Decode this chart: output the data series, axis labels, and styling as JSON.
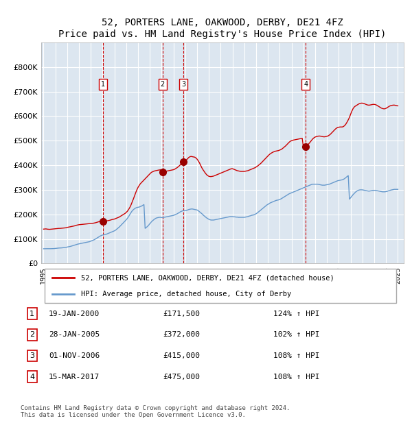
{
  "title": "52, PORTERS LANE, OAKWOOD, DERBY, DE21 4FZ",
  "subtitle": "Price paid vs. HM Land Registry's House Price Index (HPI)",
  "red_label": "52, PORTERS LANE, OAKWOOD, DERBY, DE21 4FZ (detached house)",
  "blue_label": "HPI: Average price, detached house, City of Derby",
  "footer": "Contains HM Land Registry data © Crown copyright and database right 2024.\nThis data is licensed under the Open Government Licence v3.0.",
  "sales": [
    {
      "num": 1,
      "date": "19-JAN-2000",
      "price": 171500,
      "year": 2000.05,
      "pct": "124%",
      "arrow": "↑"
    },
    {
      "num": 2,
      "date": "28-JAN-2005",
      "price": 372000,
      "year": 2005.07,
      "pct": "102%",
      "arrow": "↑"
    },
    {
      "num": 3,
      "date": "01-NOV-2006",
      "price": 415000,
      "year": 2006.83,
      "pct": "108%",
      "arrow": "↑"
    },
    {
      "num": 4,
      "date": "15-MAR-2017",
      "price": 475000,
      "year": 2017.21,
      "pct": "108%",
      "arrow": "↑"
    }
  ],
  "hpi_red": {
    "years": [
      1995.0,
      1995.1,
      1995.2,
      1995.3,
      1995.4,
      1995.5,
      1995.6,
      1995.7,
      1995.8,
      1995.9,
      1996.0,
      1996.1,
      1996.2,
      1996.3,
      1996.4,
      1996.5,
      1996.6,
      1996.7,
      1996.8,
      1996.9,
      1997.0,
      1997.1,
      1997.2,
      1997.3,
      1997.4,
      1997.5,
      1997.6,
      1997.7,
      1997.8,
      1997.9,
      1998.0,
      1998.1,
      1998.2,
      1998.3,
      1998.4,
      1998.5,
      1998.6,
      1998.7,
      1998.8,
      1998.9,
      1999.0,
      1999.1,
      1999.2,
      1999.3,
      1999.4,
      1999.5,
      1999.6,
      1999.7,
      1999.8,
      1999.9,
      2000.0,
      2000.1,
      2000.2,
      2000.3,
      2000.4,
      2000.5,
      2000.6,
      2000.7,
      2000.8,
      2000.9,
      2001.0,
      2001.1,
      2001.2,
      2001.3,
      2001.4,
      2001.5,
      2001.6,
      2001.7,
      2001.8,
      2001.9,
      2002.0,
      2002.1,
      2002.2,
      2002.3,
      2002.4,
      2002.5,
      2002.6,
      2002.7,
      2002.8,
      2002.9,
      2003.0,
      2003.1,
      2003.2,
      2003.3,
      2003.4,
      2003.5,
      2003.6,
      2003.7,
      2003.8,
      2003.9,
      2004.0,
      2004.1,
      2004.2,
      2004.3,
      2004.4,
      2004.5,
      2004.6,
      2004.7,
      2004.8,
      2004.9,
      2005.0,
      2005.1,
      2005.2,
      2005.3,
      2005.4,
      2005.5,
      2005.6,
      2005.7,
      2005.8,
      2005.9,
      2006.0,
      2006.1,
      2006.2,
      2006.3,
      2006.4,
      2006.5,
      2006.6,
      2006.7,
      2006.8,
      2006.9,
      2007.0,
      2007.1,
      2007.2,
      2007.3,
      2007.4,
      2007.5,
      2007.6,
      2007.7,
      2007.8,
      2007.9,
      2008.0,
      2008.1,
      2008.2,
      2008.3,
      2008.4,
      2008.5,
      2008.6,
      2008.7,
      2008.8,
      2008.9,
      2009.0,
      2009.1,
      2009.2,
      2009.3,
      2009.4,
      2009.5,
      2009.6,
      2009.7,
      2009.8,
      2009.9,
      2010.0,
      2010.1,
      2010.2,
      2010.3,
      2010.4,
      2010.5,
      2010.6,
      2010.7,
      2010.8,
      2010.9,
      2011.0,
      2011.1,
      2011.2,
      2011.3,
      2011.4,
      2011.5,
      2011.6,
      2011.7,
      2011.8,
      2011.9,
      2012.0,
      2012.1,
      2012.2,
      2012.3,
      2012.4,
      2012.5,
      2012.6,
      2012.7,
      2012.8,
      2012.9,
      2013.0,
      2013.1,
      2013.2,
      2013.3,
      2013.4,
      2013.5,
      2013.6,
      2013.7,
      2013.8,
      2013.9,
      2014.0,
      2014.1,
      2014.2,
      2014.3,
      2014.4,
      2014.5,
      2014.6,
      2014.7,
      2014.8,
      2014.9,
      2015.0,
      2015.1,
      2015.2,
      2015.3,
      2015.4,
      2015.5,
      2015.6,
      2015.7,
      2015.8,
      2015.9,
      2016.0,
      2016.1,
      2016.2,
      2016.3,
      2016.4,
      2016.5,
      2016.6,
      2016.7,
      2016.8,
      2016.9,
      2017.0,
      2017.1,
      2017.2,
      2017.3,
      2017.4,
      2017.5,
      2017.6,
      2017.7,
      2017.8,
      2017.9,
      2018.0,
      2018.1,
      2018.2,
      2018.3,
      2018.4,
      2018.5,
      2018.6,
      2018.7,
      2018.8,
      2018.9,
      2019.0,
      2019.1,
      2019.2,
      2019.3,
      2019.4,
      2019.5,
      2019.6,
      2019.7,
      2019.8,
      2019.9,
      2020.0,
      2020.1,
      2020.2,
      2020.3,
      2020.4,
      2020.5,
      2020.6,
      2020.7,
      2020.8,
      2020.9,
      2021.0,
      2021.1,
      2021.2,
      2021.3,
      2021.4,
      2021.5,
      2021.6,
      2021.7,
      2021.8,
      2021.9,
      2022.0,
      2022.1,
      2022.2,
      2022.3,
      2022.4,
      2022.5,
      2022.6,
      2022.7,
      2022.8,
      2022.9,
      2023.0,
      2023.1,
      2023.2,
      2023.3,
      2023.4,
      2023.5,
      2023.6,
      2023.7,
      2023.8,
      2023.9,
      2024.0,
      2024.1,
      2024.2,
      2024.3,
      2024.4,
      2024.5,
      2024.6,
      2024.7,
      2024.8,
      2024.9,
      2025.0
    ],
    "values": [
      140000,
      140500,
      141000,
      140000,
      139500,
      139000,
      139500,
      140000,
      140500,
      141000,
      141500,
      142000,
      142500,
      143000,
      143000,
      143500,
      144000,
      144500,
      145000,
      145500,
      147000,
      148000,
      149000,
      150000,
      151000,
      152000,
      153000,
      154500,
      156000,
      157000,
      158000,
      158500,
      159000,
      159500,
      160000,
      160500,
      161000,
      161500,
      162000,
      162500,
      163000,
      163500,
      164000,
      165000,
      166000,
      167500,
      169000,
      170500,
      172000,
      173000,
      172000,
      171500,
      172000,
      173000,
      174000,
      175000,
      176000,
      177500,
      179000,
      180000,
      181000,
      183000,
      185000,
      187000,
      189000,
      192000,
      195000,
      198000,
      201000,
      204000,
      208000,
      213000,
      220000,
      228000,
      238000,
      250000,
      262000,
      275000,
      288000,
      300000,
      310000,
      318000,
      325000,
      330000,
      335000,
      340000,
      345000,
      350000,
      355000,
      360000,
      365000,
      370000,
      373000,
      375000,
      377000,
      378000,
      379000,
      380000,
      381000,
      381500,
      372000,
      373000,
      374000,
      375000,
      376000,
      377000,
      378000,
      379000,
      380000,
      381000,
      382000,
      384000,
      387000,
      390000,
      394000,
      398000,
      403000,
      408000,
      413000,
      415000,
      418000,
      422000,
      427000,
      432000,
      435000,
      436000,
      435000,
      434000,
      433000,
      430000,
      425000,
      418000,
      410000,
      400000,
      390000,
      382000,
      375000,
      368000,
      362000,
      358000,
      355000,
      354000,
      354000,
      355000,
      356000,
      358000,
      360000,
      362000,
      364000,
      366000,
      368000,
      370000,
      372000,
      374000,
      376000,
      378000,
      380000,
      382000,
      384000,
      386000,
      386000,
      384000,
      382000,
      380000,
      378000,
      377000,
      376000,
      375000,
      375000,
      375000,
      375000,
      376000,
      377000,
      378000,
      380000,
      382000,
      384000,
      386000,
      388000,
      390000,
      393000,
      396000,
      400000,
      404000,
      408000,
      413000,
      418000,
      423000,
      428000,
      433000,
      438000,
      443000,
      447000,
      450000,
      453000,
      455000,
      457000,
      458000,
      459000,
      460000,
      462000,
      464000,
      467000,
      471000,
      475000,
      479000,
      484000,
      489000,
      494000,
      498000,
      500000,
      502000,
      503000,
      504000,
      505000,
      506000,
      507000,
      508000,
      509000,
      510000,
      475000,
      476000,
      478000,
      481000,
      485000,
      490000,
      496000,
      502000,
      508000,
      512000,
      515000,
      517000,
      518000,
      519000,
      519000,
      518000,
      517000,
      516000,
      516000,
      517000,
      518000,
      520000,
      523000,
      527000,
      532000,
      537000,
      542000,
      547000,
      551000,
      554000,
      555000,
      556000,
      556000,
      556000,
      558000,
      562000,
      568000,
      576000,
      585000,
      595000,
      608000,
      620000,
      630000,
      637000,
      641000,
      644000,
      647000,
      650000,
      652000,
      653000,
      653000,
      652000,
      650000,
      648000,
      646000,
      645000,
      645000,
      646000,
      647000,
      648000,
      648000,
      647000,
      645000,
      642000,
      639000,
      636000,
      633000,
      631000,
      630000,
      630000,
      632000,
      635000,
      638000,
      641000,
      643000,
      644000,
      645000,
      645000,
      644000,
      643000,
      642000
    ]
  },
  "hpi_blue": {
    "years": [
      1995.0,
      1995.1,
      1995.2,
      1995.3,
      1995.4,
      1995.5,
      1995.6,
      1995.7,
      1995.8,
      1995.9,
      1996.0,
      1996.1,
      1996.2,
      1996.3,
      1996.4,
      1996.5,
      1996.6,
      1996.7,
      1996.8,
      1996.9,
      1997.0,
      1997.1,
      1997.2,
      1997.3,
      1997.4,
      1997.5,
      1997.6,
      1997.7,
      1997.8,
      1997.9,
      1998.0,
      1998.1,
      1998.2,
      1998.3,
      1998.4,
      1998.5,
      1998.6,
      1998.7,
      1998.8,
      1998.9,
      1999.0,
      1999.1,
      1999.2,
      1999.3,
      1999.4,
      1999.5,
      1999.6,
      1999.7,
      1999.8,
      1999.9,
      2000.0,
      2000.1,
      2000.2,
      2000.3,
      2000.4,
      2000.5,
      2000.6,
      2000.7,
      2000.8,
      2000.9,
      2001.0,
      2001.1,
      2001.2,
      2001.3,
      2001.4,
      2001.5,
      2001.6,
      2001.7,
      2001.8,
      2001.9,
      2002.0,
      2002.1,
      2002.2,
      2002.3,
      2002.4,
      2002.5,
      2002.6,
      2002.7,
      2002.8,
      2002.9,
      2003.0,
      2003.1,
      2003.2,
      2003.3,
      2003.4,
      2003.5,
      2003.6,
      2003.7,
      2003.8,
      2003.9,
      2004.0,
      2004.1,
      2004.2,
      2004.3,
      2004.4,
      2004.5,
      2004.6,
      2004.7,
      2004.8,
      2004.9,
      2005.0,
      2005.1,
      2005.2,
      2005.3,
      2005.4,
      2005.5,
      2005.6,
      2005.7,
      2005.8,
      2005.9,
      2006.0,
      2006.1,
      2006.2,
      2006.3,
      2006.4,
      2006.5,
      2006.6,
      2006.7,
      2006.8,
      2006.9,
      2007.0,
      2007.1,
      2007.2,
      2007.3,
      2007.4,
      2007.5,
      2007.6,
      2007.7,
      2007.8,
      2007.9,
      2008.0,
      2008.1,
      2008.2,
      2008.3,
      2008.4,
      2008.5,
      2008.6,
      2008.7,
      2008.8,
      2008.9,
      2009.0,
      2009.1,
      2009.2,
      2009.3,
      2009.4,
      2009.5,
      2009.6,
      2009.7,
      2009.8,
      2009.9,
      2010.0,
      2010.1,
      2010.2,
      2010.3,
      2010.4,
      2010.5,
      2010.6,
      2010.7,
      2010.8,
      2010.9,
      2011.0,
      2011.1,
      2011.2,
      2011.3,
      2011.4,
      2011.5,
      2011.6,
      2011.7,
      2011.8,
      2011.9,
      2012.0,
      2012.1,
      2012.2,
      2012.3,
      2012.4,
      2012.5,
      2012.6,
      2012.7,
      2012.8,
      2012.9,
      2013.0,
      2013.1,
      2013.2,
      2013.3,
      2013.4,
      2013.5,
      2013.6,
      2013.7,
      2013.8,
      2013.9,
      2014.0,
      2014.1,
      2014.2,
      2014.3,
      2014.4,
      2014.5,
      2014.6,
      2014.7,
      2014.8,
      2014.9,
      2015.0,
      2015.1,
      2015.2,
      2015.3,
      2015.4,
      2015.5,
      2015.6,
      2015.7,
      2015.8,
      2015.9,
      2016.0,
      2016.1,
      2016.2,
      2016.3,
      2016.4,
      2016.5,
      2016.6,
      2016.7,
      2016.8,
      2016.9,
      2017.0,
      2017.1,
      2017.2,
      2017.3,
      2017.4,
      2017.5,
      2017.6,
      2017.7,
      2017.8,
      2017.9,
      2018.0,
      2018.1,
      2018.2,
      2018.3,
      2018.4,
      2018.5,
      2018.6,
      2018.7,
      2018.8,
      2018.9,
      2019.0,
      2019.1,
      2019.2,
      2019.3,
      2019.4,
      2019.5,
      2019.6,
      2019.7,
      2019.8,
      2019.9,
      2020.0,
      2020.1,
      2020.2,
      2020.3,
      2020.4,
      2020.5,
      2020.6,
      2020.7,
      2020.8,
      2020.9,
      2021.0,
      2021.1,
      2021.2,
      2021.3,
      2021.4,
      2021.5,
      2021.6,
      2021.7,
      2021.8,
      2021.9,
      2022.0,
      2022.1,
      2022.2,
      2022.3,
      2022.4,
      2022.5,
      2022.6,
      2022.7,
      2022.8,
      2022.9,
      2023.0,
      2023.1,
      2023.2,
      2023.3,
      2023.4,
      2023.5,
      2023.6,
      2023.7,
      2023.8,
      2023.9,
      2024.0,
      2024.1,
      2024.2,
      2024.3,
      2024.4,
      2024.5,
      2024.6,
      2024.7,
      2024.8,
      2024.9,
      2025.0
    ],
    "values": [
      60000,
      60200,
      60400,
      60300,
      60200,
      60100,
      60300,
      60500,
      60700,
      60900,
      61500,
      62000,
      62500,
      63000,
      63200,
      63500,
      64000,
      64500,
      65000,
      65500,
      67000,
      68000,
      69000,
      70000,
      71500,
      73000,
      74500,
      76000,
      77500,
      79000,
      80000,
      81000,
      82000,
      83000,
      84000,
      85000,
      86000,
      87000,
      88000,
      89000,
      91000,
      93000,
      95000,
      97000,
      100000,
      103000,
      106000,
      109000,
      112000,
      114000,
      116000,
      117000,
      118000,
      119000,
      121000,
      123000,
      125000,
      127000,
      129000,
      131000,
      133000,
      136000,
      140000,
      144000,
      148000,
      153000,
      158000,
      163000,
      168000,
      173000,
      178000,
      184000,
      191000,
      199000,
      207000,
      214000,
      219000,
      223000,
      226000,
      228000,
      229000,
      230000,
      232000,
      234000,
      237000,
      240000,
      143000,
      147000,
      151000,
      156000,
      162000,
      168000,
      173000,
      177000,
      181000,
      184000,
      186000,
      187000,
      188000,
      188000,
      187000,
      187000,
      188000,
      189000,
      190000,
      191000,
      192000,
      193000,
      194000,
      195000,
      196000,
      198000,
      200000,
      202000,
      205000,
      208000,
      211000,
      213000,
      215000,
      215000,
      215000,
      216000,
      218000,
      220000,
      221000,
      222000,
      222000,
      221000,
      220000,
      219000,
      218000,
      215000,
      211000,
      207000,
      203000,
      198000,
      194000,
      190000,
      186000,
      183000,
      180000,
      178000,
      177000,
      177000,
      177000,
      178000,
      179000,
      180000,
      181000,
      182000,
      183000,
      184000,
      185000,
      186000,
      187000,
      188000,
      189000,
      190000,
      191000,
      191000,
      191000,
      190000,
      190000,
      189000,
      189000,
      188000,
      188000,
      188000,
      188000,
      188000,
      188000,
      189000,
      190000,
      191000,
      193000,
      194000,
      196000,
      197000,
      198000,
      200000,
      203000,
      206000,
      210000,
      214000,
      218000,
      222000,
      226000,
      230000,
      234000,
      238000,
      241000,
      244000,
      247000,
      249000,
      251000,
      253000,
      255000,
      257000,
      258000,
      259000,
      261000,
      263000,
      266000,
      269000,
      272000,
      275000,
      278000,
      281000,
      284000,
      286000,
      288000,
      290000,
      292000,
      294000,
      296000,
      298000,
      300000,
      302000,
      304000,
      306000,
      308000,
      310000,
      312000,
      314000,
      316000,
      318000,
      320000,
      322000,
      323000,
      323000,
      323000,
      323000,
      323000,
      322000,
      321000,
      320000,
      319000,
      319000,
      319000,
      320000,
      321000,
      322000,
      323000,
      325000,
      327000,
      329000,
      331000,
      333000,
      335000,
      337000,
      338000,
      339000,
      340000,
      341000,
      343000,
      346000,
      350000,
      354000,
      358000,
      262000,
      268000,
      274000,
      280000,
      285000,
      290000,
      294000,
      297000,
      299000,
      300000,
      300000,
      300000,
      299000,
      298000,
      297000,
      296000,
      295000,
      295000,
      296000,
      297000,
      298000,
      298000,
      298000,
      297000,
      296000,
      295000,
      294000,
      293000,
      292000,
      292000,
      292000,
      293000,
      294000,
      296000,
      297000,
      299000,
      300000,
      301000,
      302000,
      302000,
      302000,
      302000
    ]
  },
  "xlim": [
    1994.8,
    2025.5
  ],
  "ylim": [
    0,
    900000
  ],
  "yticks": [
    0,
    100000,
    200000,
    300000,
    400000,
    500000,
    600000,
    700000,
    800000
  ],
  "ytick_labels": [
    "£0",
    "£100K",
    "£200K",
    "£300K",
    "£400K",
    "£500K",
    "£600K",
    "£700K",
    "£800K"
  ],
  "xtick_years": [
    1995,
    1996,
    1997,
    1998,
    1999,
    2000,
    2001,
    2002,
    2003,
    2004,
    2005,
    2006,
    2007,
    2008,
    2009,
    2010,
    2011,
    2012,
    2013,
    2014,
    2015,
    2016,
    2017,
    2018,
    2019,
    2020,
    2021,
    2022,
    2023,
    2024,
    2025
  ],
  "bg_color": "#dce6f0",
  "grid_color": "#ffffff",
  "red_color": "#cc0000",
  "blue_color": "#6699cc",
  "marker_color": "#990000"
}
